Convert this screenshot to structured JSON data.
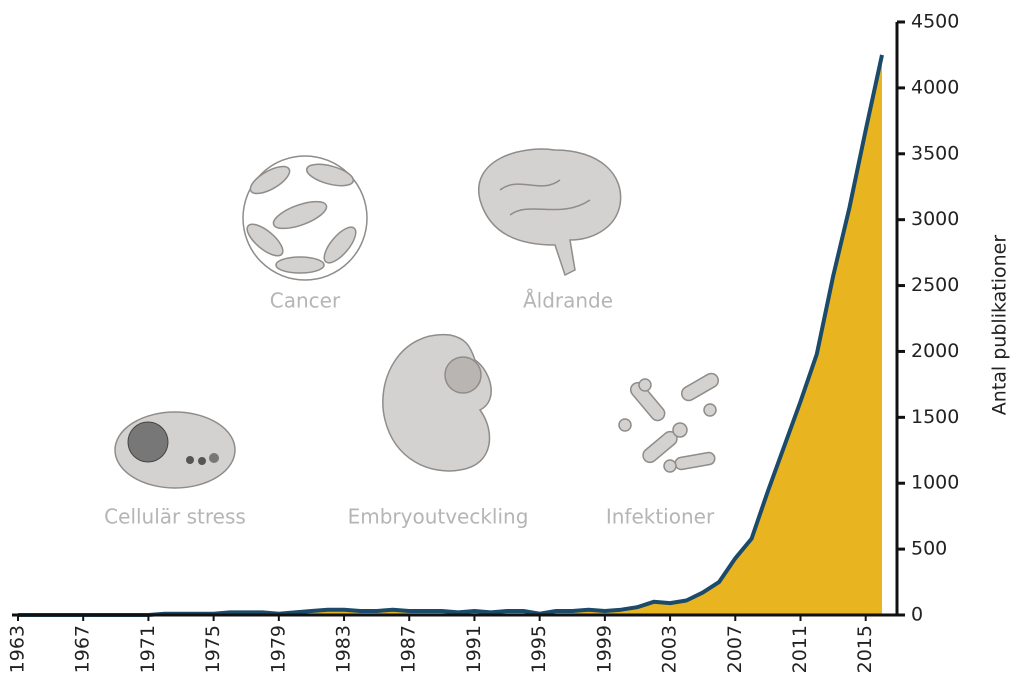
{
  "chart_data": {
    "type": "area",
    "x": [
      1963,
      1964,
      1965,
      1966,
      1967,
      1968,
      1969,
      1970,
      1971,
      1972,
      1973,
      1974,
      1975,
      1976,
      1977,
      1978,
      1979,
      1980,
      1981,
      1982,
      1983,
      1984,
      1985,
      1986,
      1987,
      1988,
      1989,
      1990,
      1991,
      1992,
      1993,
      1994,
      1995,
      1996,
      1997,
      1998,
      1999,
      2000,
      2001,
      2002,
      2003,
      2004,
      2005,
      2006,
      2007,
      2008,
      2009,
      2010,
      2011,
      2012,
      2013,
      2014,
      2015,
      2016
    ],
    "values": [
      0,
      0,
      0,
      0,
      0,
      0,
      0,
      0,
      0,
      10,
      10,
      10,
      10,
      20,
      20,
      20,
      10,
      20,
      30,
      40,
      40,
      30,
      30,
      40,
      30,
      30,
      30,
      20,
      30,
      20,
      30,
      30,
      10,
      30,
      30,
      40,
      30,
      40,
      60,
      100,
      90,
      110,
      170,
      250,
      430,
      580,
      940,
      1280,
      1620,
      1980,
      2570,
      3090,
      3680,
      4250
    ],
    "color": "#e8b521",
    "line_color": "#1b4a6b",
    "xlim": [
      1963,
      2016
    ],
    "xticks": [
      1963,
      1967,
      1971,
      1975,
      1979,
      1983,
      1987,
      1991,
      1995,
      1999,
      2003,
      2007,
      2011,
      2015
    ],
    "ylim": [
      0,
      4500
    ],
    "yticks": [
      0,
      500,
      1000,
      1500,
      2000,
      2500,
      3000,
      3500,
      4000,
      4500
    ],
    "y_axis_label": "Antal publikationer",
    "annotations": [
      "Cancer",
      "Åldrande",
      "Embryoutveckling",
      "Cellulär stress",
      "Infektioner"
    ]
  }
}
